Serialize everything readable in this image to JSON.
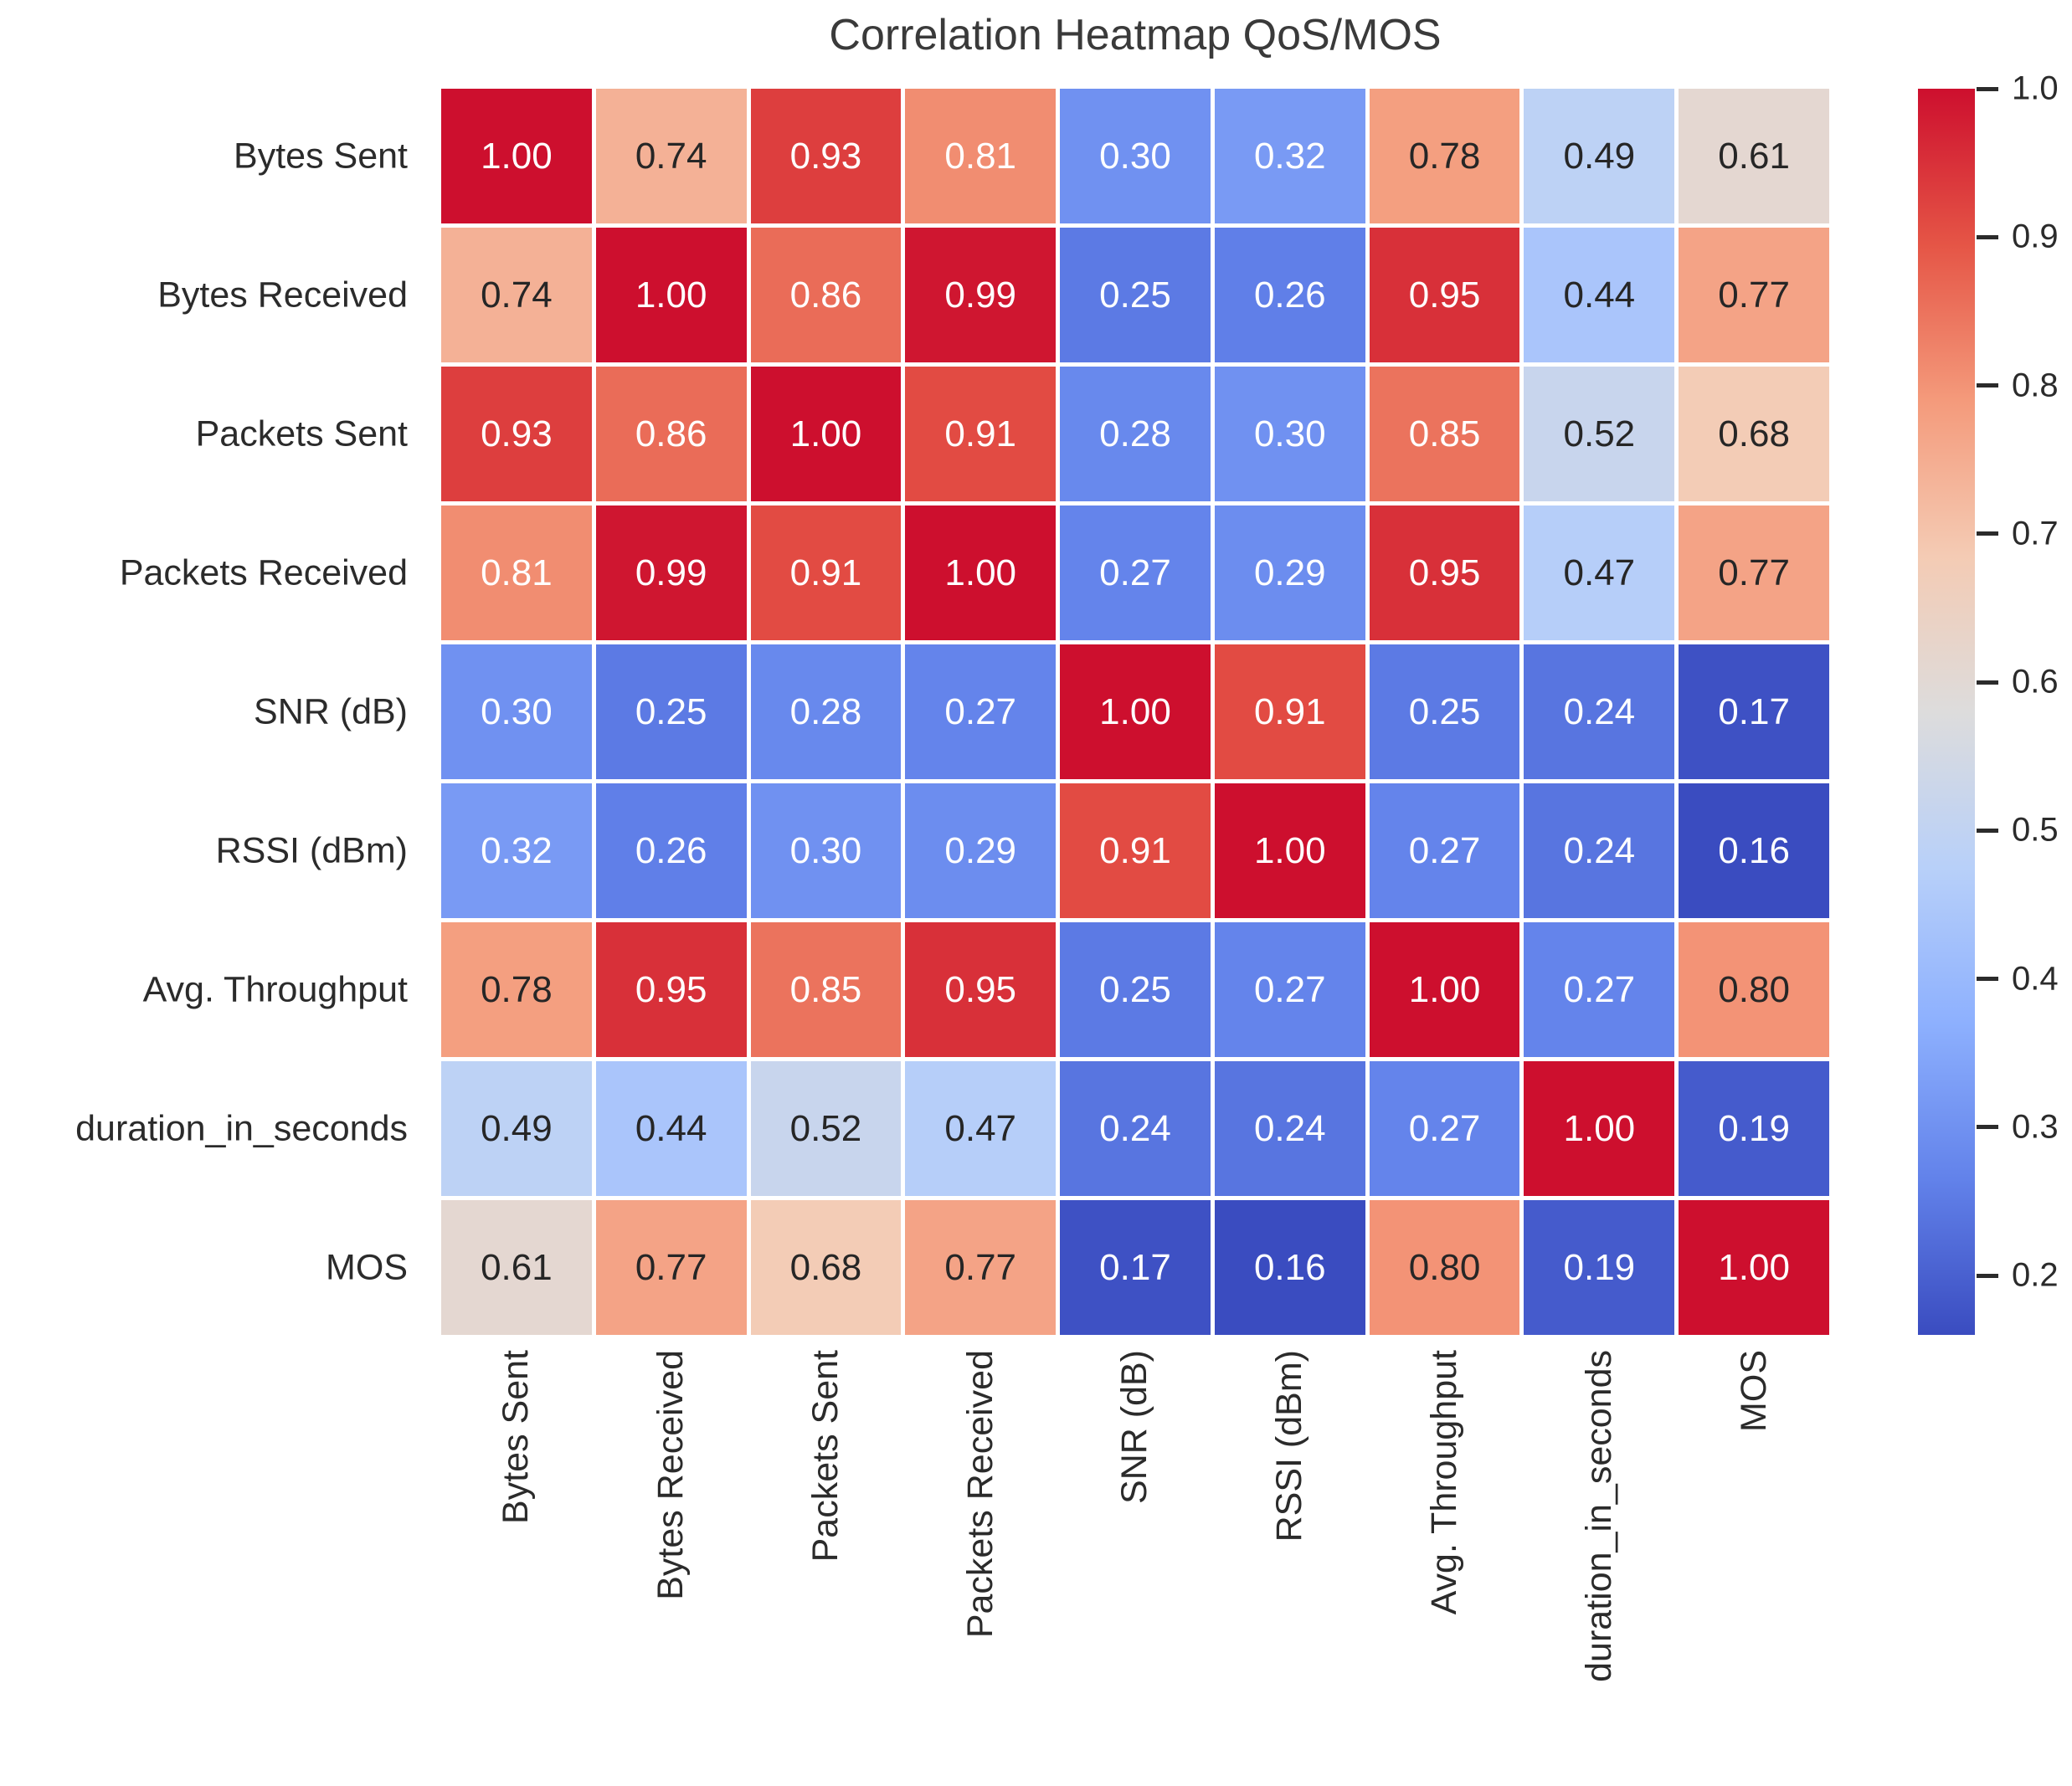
{
  "title": "Correlation Heatmap QoS/MOS",
  "chart_data": {
    "type": "heatmap",
    "title": "Correlation Heatmap QoS/MOS",
    "labels": [
      "Bytes Sent",
      "Bytes Received",
      "Packets Sent",
      "Packets Received",
      "SNR (dB)",
      "RSSI (dBm)",
      "Avg. Throughput",
      "duration_in_seconds",
      "MOS"
    ],
    "matrix": [
      [
        1.0,
        0.74,
        0.93,
        0.81,
        0.3,
        0.32,
        0.78,
        0.49,
        0.61
      ],
      [
        0.74,
        1.0,
        0.86,
        0.99,
        0.25,
        0.26,
        0.95,
        0.44,
        0.77
      ],
      [
        0.93,
        0.86,
        1.0,
        0.91,
        0.28,
        0.3,
        0.85,
        0.52,
        0.68
      ],
      [
        0.81,
        0.99,
        0.91,
        1.0,
        0.27,
        0.29,
        0.95,
        0.47,
        0.77
      ],
      [
        0.3,
        0.25,
        0.28,
        0.27,
        1.0,
        0.91,
        0.25,
        0.24,
        0.17
      ],
      [
        0.32,
        0.26,
        0.3,
        0.29,
        0.91,
        1.0,
        0.27,
        0.24,
        0.16
      ],
      [
        0.78,
        0.95,
        0.85,
        0.95,
        0.25,
        0.27,
        1.0,
        0.27,
        0.8
      ],
      [
        0.49,
        0.44,
        0.52,
        0.47,
        0.24,
        0.24,
        0.27,
        1.0,
        0.19
      ],
      [
        0.61,
        0.77,
        0.68,
        0.77,
        0.17,
        0.16,
        0.8,
        0.19,
        1.0
      ]
    ],
    "value_format": "0.00",
    "colormap": "coolwarm",
    "vmin": 0.16,
    "vmax": 1.0,
    "x_labels_rotation_deg": 90,
    "grid": "white cell borders",
    "legend_position": "right-colorbar",
    "colorbar_ticks": [
      1.0,
      0.9,
      0.8,
      0.7,
      0.6,
      0.5,
      0.4,
      0.3,
      0.2
    ]
  },
  "colors": {
    "background": "#ffffff",
    "title_text": "#3a3a3a",
    "axis_label_text": "#2b2b2b",
    "cell_text_dark": "#262626",
    "cell_text_light": "#ffffff",
    "coolwarm_anchors": [
      "#3a4cc0",
      "#6282ea",
      "#8db0fe",
      "#b8d0f9",
      "#dddcdc",
      "#f4cbb4",
      "#f49a7b",
      "#e55546",
      "#cd0f2e"
    ]
  }
}
